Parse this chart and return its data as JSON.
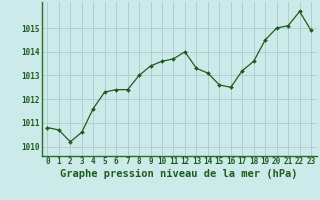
{
  "x": [
    0,
    1,
    2,
    3,
    4,
    5,
    6,
    7,
    8,
    9,
    10,
    11,
    12,
    13,
    14,
    15,
    16,
    17,
    18,
    19,
    20,
    21,
    22,
    23
  ],
  "y": [
    1010.8,
    1010.7,
    1010.2,
    1010.6,
    1011.6,
    1012.3,
    1012.4,
    1012.4,
    1013.0,
    1013.4,
    1013.6,
    1013.7,
    1014.0,
    1013.3,
    1013.1,
    1012.6,
    1012.5,
    1013.2,
    1013.6,
    1014.5,
    1015.0,
    1015.1,
    1015.7,
    1014.9
  ],
  "line_color": "#1e5c1e",
  "marker_color": "#1e5c1e",
  "bg_color": "#cceaea",
  "grid_color": "#aacccc",
  "ylabel_values": [
    1010,
    1011,
    1012,
    1013,
    1014,
    1015
  ],
  "xlabel_label": "Graphe pression niveau de la mer (hPa)",
  "xlabel_fontsize": 7.5,
  "ylim": [
    1009.6,
    1016.1
  ],
  "xlim": [
    -0.5,
    23.5
  ],
  "tick_fontsize": 5.5,
  "line_color_spine": "#2d6a2d"
}
